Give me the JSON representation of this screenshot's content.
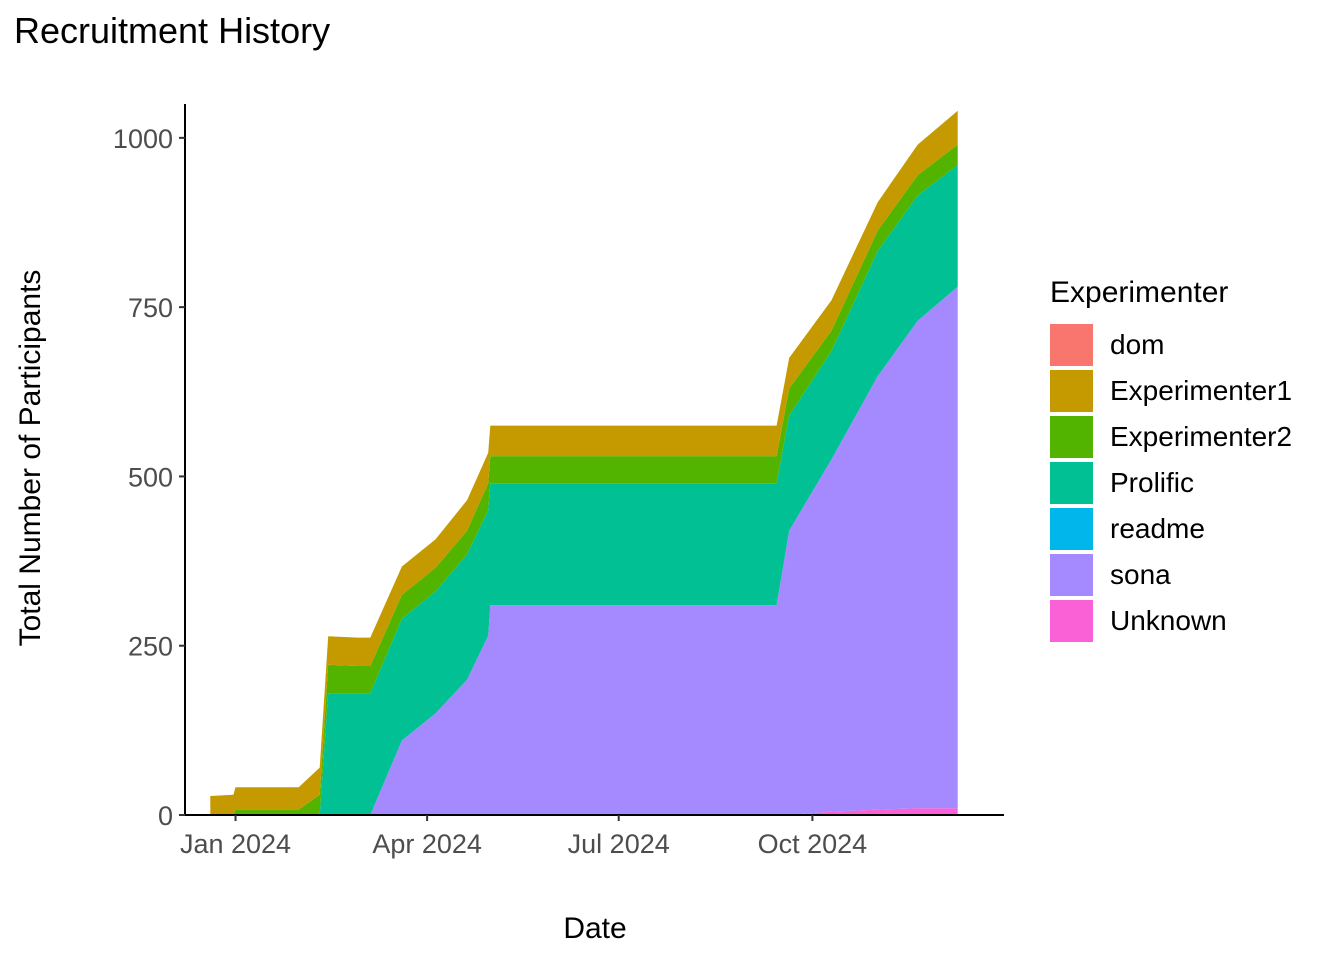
{
  "chart_data": {
    "type": "area",
    "title": "Recruitment History",
    "xlabel": "Date",
    "ylabel": "Total Number of Participants",
    "x_ticks": [
      "Jan 2024",
      "Apr 2024",
      "Jul 2024",
      "Oct 2024"
    ],
    "y_ticks": [
      0,
      250,
      500,
      750,
      1000
    ],
    "ylim": [
      0,
      1050
    ],
    "xlim": [
      "2023-12-08",
      "2024-12-31"
    ],
    "grid": false,
    "legend": {
      "title": "Experimenter",
      "position": "right"
    },
    "stack_order": [
      "Unknown",
      "sona",
      "readme",
      "Prolific",
      "Experimenter2",
      "Experimenter1",
      "dom"
    ],
    "series": [
      {
        "name": "dom",
        "color": "#F8766D",
        "points": [
          [
            "2023-12-20",
            0
          ],
          [
            "2024-12-20",
            0
          ]
        ]
      },
      {
        "name": "Experimenter1",
        "color": "#C49A00",
        "points": [
          [
            "2023-12-20",
            28
          ],
          [
            "2023-12-31",
            30
          ],
          [
            "2024-01-01",
            33
          ],
          [
            "2024-01-31",
            33
          ],
          [
            "2024-02-10",
            40
          ],
          [
            "2024-02-14",
            42
          ],
          [
            "2024-02-28",
            42
          ],
          [
            "2024-03-05",
            42
          ],
          [
            "2024-03-20",
            42
          ],
          [
            "2024-04-05",
            42
          ],
          [
            "2024-04-20",
            45
          ],
          [
            "2024-04-30",
            45
          ],
          [
            "2024-05-01",
            45
          ],
          [
            "2024-09-14",
            45
          ],
          [
            "2024-09-20",
            45
          ],
          [
            "2024-10-10",
            45
          ],
          [
            "2024-11-01",
            42
          ],
          [
            "2024-11-20",
            45
          ],
          [
            "2024-12-09",
            50
          ]
        ]
      },
      {
        "name": "Experimenter2",
        "color": "#53B400",
        "points": [
          [
            "2023-12-20",
            0
          ],
          [
            "2023-12-31",
            0
          ],
          [
            "2024-01-01",
            8
          ],
          [
            "2024-01-31",
            8
          ],
          [
            "2024-02-10",
            30
          ],
          [
            "2024-02-14",
            42
          ],
          [
            "2024-02-28",
            40
          ],
          [
            "2024-03-05",
            40
          ],
          [
            "2024-03-20",
            35
          ],
          [
            "2024-04-05",
            35
          ],
          [
            "2024-04-20",
            35
          ],
          [
            "2024-04-30",
            40
          ],
          [
            "2024-05-01",
            40
          ],
          [
            "2024-09-14",
            40
          ],
          [
            "2024-09-20",
            40
          ],
          [
            "2024-10-10",
            30
          ],
          [
            "2024-11-01",
            30
          ],
          [
            "2024-11-20",
            30
          ],
          [
            "2024-12-09",
            30
          ]
        ]
      },
      {
        "name": "Prolific",
        "color": "#00C094",
        "points": [
          [
            "2023-12-20",
            0
          ],
          [
            "2023-12-31",
            0
          ],
          [
            "2024-01-01",
            0
          ],
          [
            "2024-01-31",
            0
          ],
          [
            "2024-02-10",
            0
          ],
          [
            "2024-02-14",
            180
          ],
          [
            "2024-02-28",
            180
          ],
          [
            "2024-03-05",
            180
          ],
          [
            "2024-03-20",
            180
          ],
          [
            "2024-04-05",
            180
          ],
          [
            "2024-04-20",
            185
          ],
          [
            "2024-04-30",
            185
          ],
          [
            "2024-05-01",
            180
          ],
          [
            "2024-09-14",
            180
          ],
          [
            "2024-09-20",
            170
          ],
          [
            "2024-10-10",
            160
          ],
          [
            "2024-11-01",
            185
          ],
          [
            "2024-11-20",
            185
          ],
          [
            "2024-12-09",
            180
          ]
        ]
      },
      {
        "name": "readme",
        "color": "#00B6EB",
        "points": [
          [
            "2023-12-20",
            0
          ],
          [
            "2024-12-20",
            0
          ]
        ]
      },
      {
        "name": "sona",
        "color": "#A58AFF",
        "points": [
          [
            "2023-12-20",
            0
          ],
          [
            "2023-12-31",
            0
          ],
          [
            "2024-01-01",
            0
          ],
          [
            "2024-01-31",
            0
          ],
          [
            "2024-02-10",
            0
          ],
          [
            "2024-02-14",
            0
          ],
          [
            "2024-02-28",
            0
          ],
          [
            "2024-03-05",
            0
          ],
          [
            "2024-03-20",
            110
          ],
          [
            "2024-04-05",
            150
          ],
          [
            "2024-04-20",
            200
          ],
          [
            "2024-04-30",
            265
          ],
          [
            "2024-05-01",
            310
          ],
          [
            "2024-09-14",
            310
          ],
          [
            "2024-09-20",
            420
          ],
          [
            "2024-10-10",
            520
          ],
          [
            "2024-11-01",
            640
          ],
          [
            "2024-11-20",
            720
          ],
          [
            "2024-12-09",
            770
          ]
        ]
      },
      {
        "name": "Unknown",
        "color": "#FB61D7",
        "points": [
          [
            "2023-12-20",
            0
          ],
          [
            "2024-09-20",
            0
          ],
          [
            "2024-10-10",
            5
          ],
          [
            "2024-11-01",
            8
          ],
          [
            "2024-11-20",
            10
          ],
          [
            "2024-12-09",
            10
          ]
        ]
      }
    ]
  }
}
